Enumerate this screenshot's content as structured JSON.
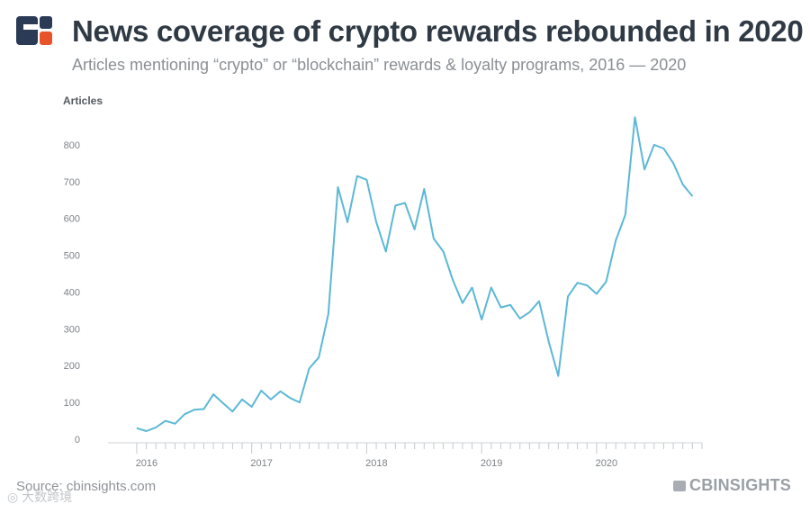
{
  "header": {
    "title": "News coverage of crypto rewards rebounded in 2020",
    "subtitle": "Articles mentioning “crypto” or “blockchain” rewards & loyalty programs, 2016 — 2020",
    "logo_colors": [
      "#2b3a55",
      "#e8542a"
    ]
  },
  "footer": {
    "source": "Source: cbinsights.com",
    "brand": "CBINSIGHTS",
    "watermark": "◎ 大数跨境"
  },
  "chart_data": {
    "type": "line",
    "title": "News coverage of crypto rewards rebounded in 2020",
    "ylabel": "Articles",
    "xlabel": "",
    "ylim": [
      0,
      900
    ],
    "yticks": [
      0,
      100,
      200,
      300,
      400,
      500,
      600,
      700,
      800
    ],
    "xlim": [
      "2015-10",
      "2020-12"
    ],
    "xtick_labels": [
      "2016",
      "2017",
      "2018",
      "2019",
      "2020"
    ],
    "grid": false,
    "line_color": "#5bb8d6",
    "series": [
      {
        "name": "",
        "x": [
          "2016-01",
          "2016-02",
          "2016-03",
          "2016-04",
          "2016-05",
          "2016-06",
          "2016-07",
          "2016-08",
          "2016-09",
          "2016-10",
          "2016-11",
          "2016-12",
          "2017-01",
          "2017-02",
          "2017-03",
          "2017-04",
          "2017-05",
          "2017-06",
          "2017-07",
          "2017-08",
          "2017-09",
          "2017-10",
          "2017-11",
          "2017-12",
          "2018-01",
          "2018-02",
          "2018-03",
          "2018-04",
          "2018-05",
          "2018-06",
          "2018-07",
          "2018-08",
          "2018-09",
          "2018-10",
          "2018-11",
          "2018-12",
          "2019-01",
          "2019-02",
          "2019-03",
          "2019-04",
          "2019-05",
          "2019-06",
          "2019-07",
          "2019-08",
          "2019-09",
          "2019-10",
          "2019-11",
          "2019-12",
          "2020-01",
          "2020-02",
          "2020-03",
          "2020-04",
          "2020-05",
          "2020-06",
          "2020-07",
          "2020-08",
          "2020-09",
          "2020-10",
          "2020-11"
        ],
        "values": [
          30,
          22,
          32,
          50,
          42,
          68,
          80,
          82,
          122,
          98,
          75,
          108,
          88,
          132,
          108,
          130,
          112,
          100,
          192,
          222,
          340,
          685,
          590,
          715,
          705,
          590,
          510,
          635,
          642,
          570,
          680,
          545,
          510,
          432,
          370,
          412,
          325,
          412,
          358,
          365,
          328,
          345,
          375,
          265,
          172,
          388,
          425,
          418,
          395,
          428,
          540,
          610,
          875,
          733,
          800,
          790,
          750,
          692,
          660
        ]
      }
    ]
  }
}
